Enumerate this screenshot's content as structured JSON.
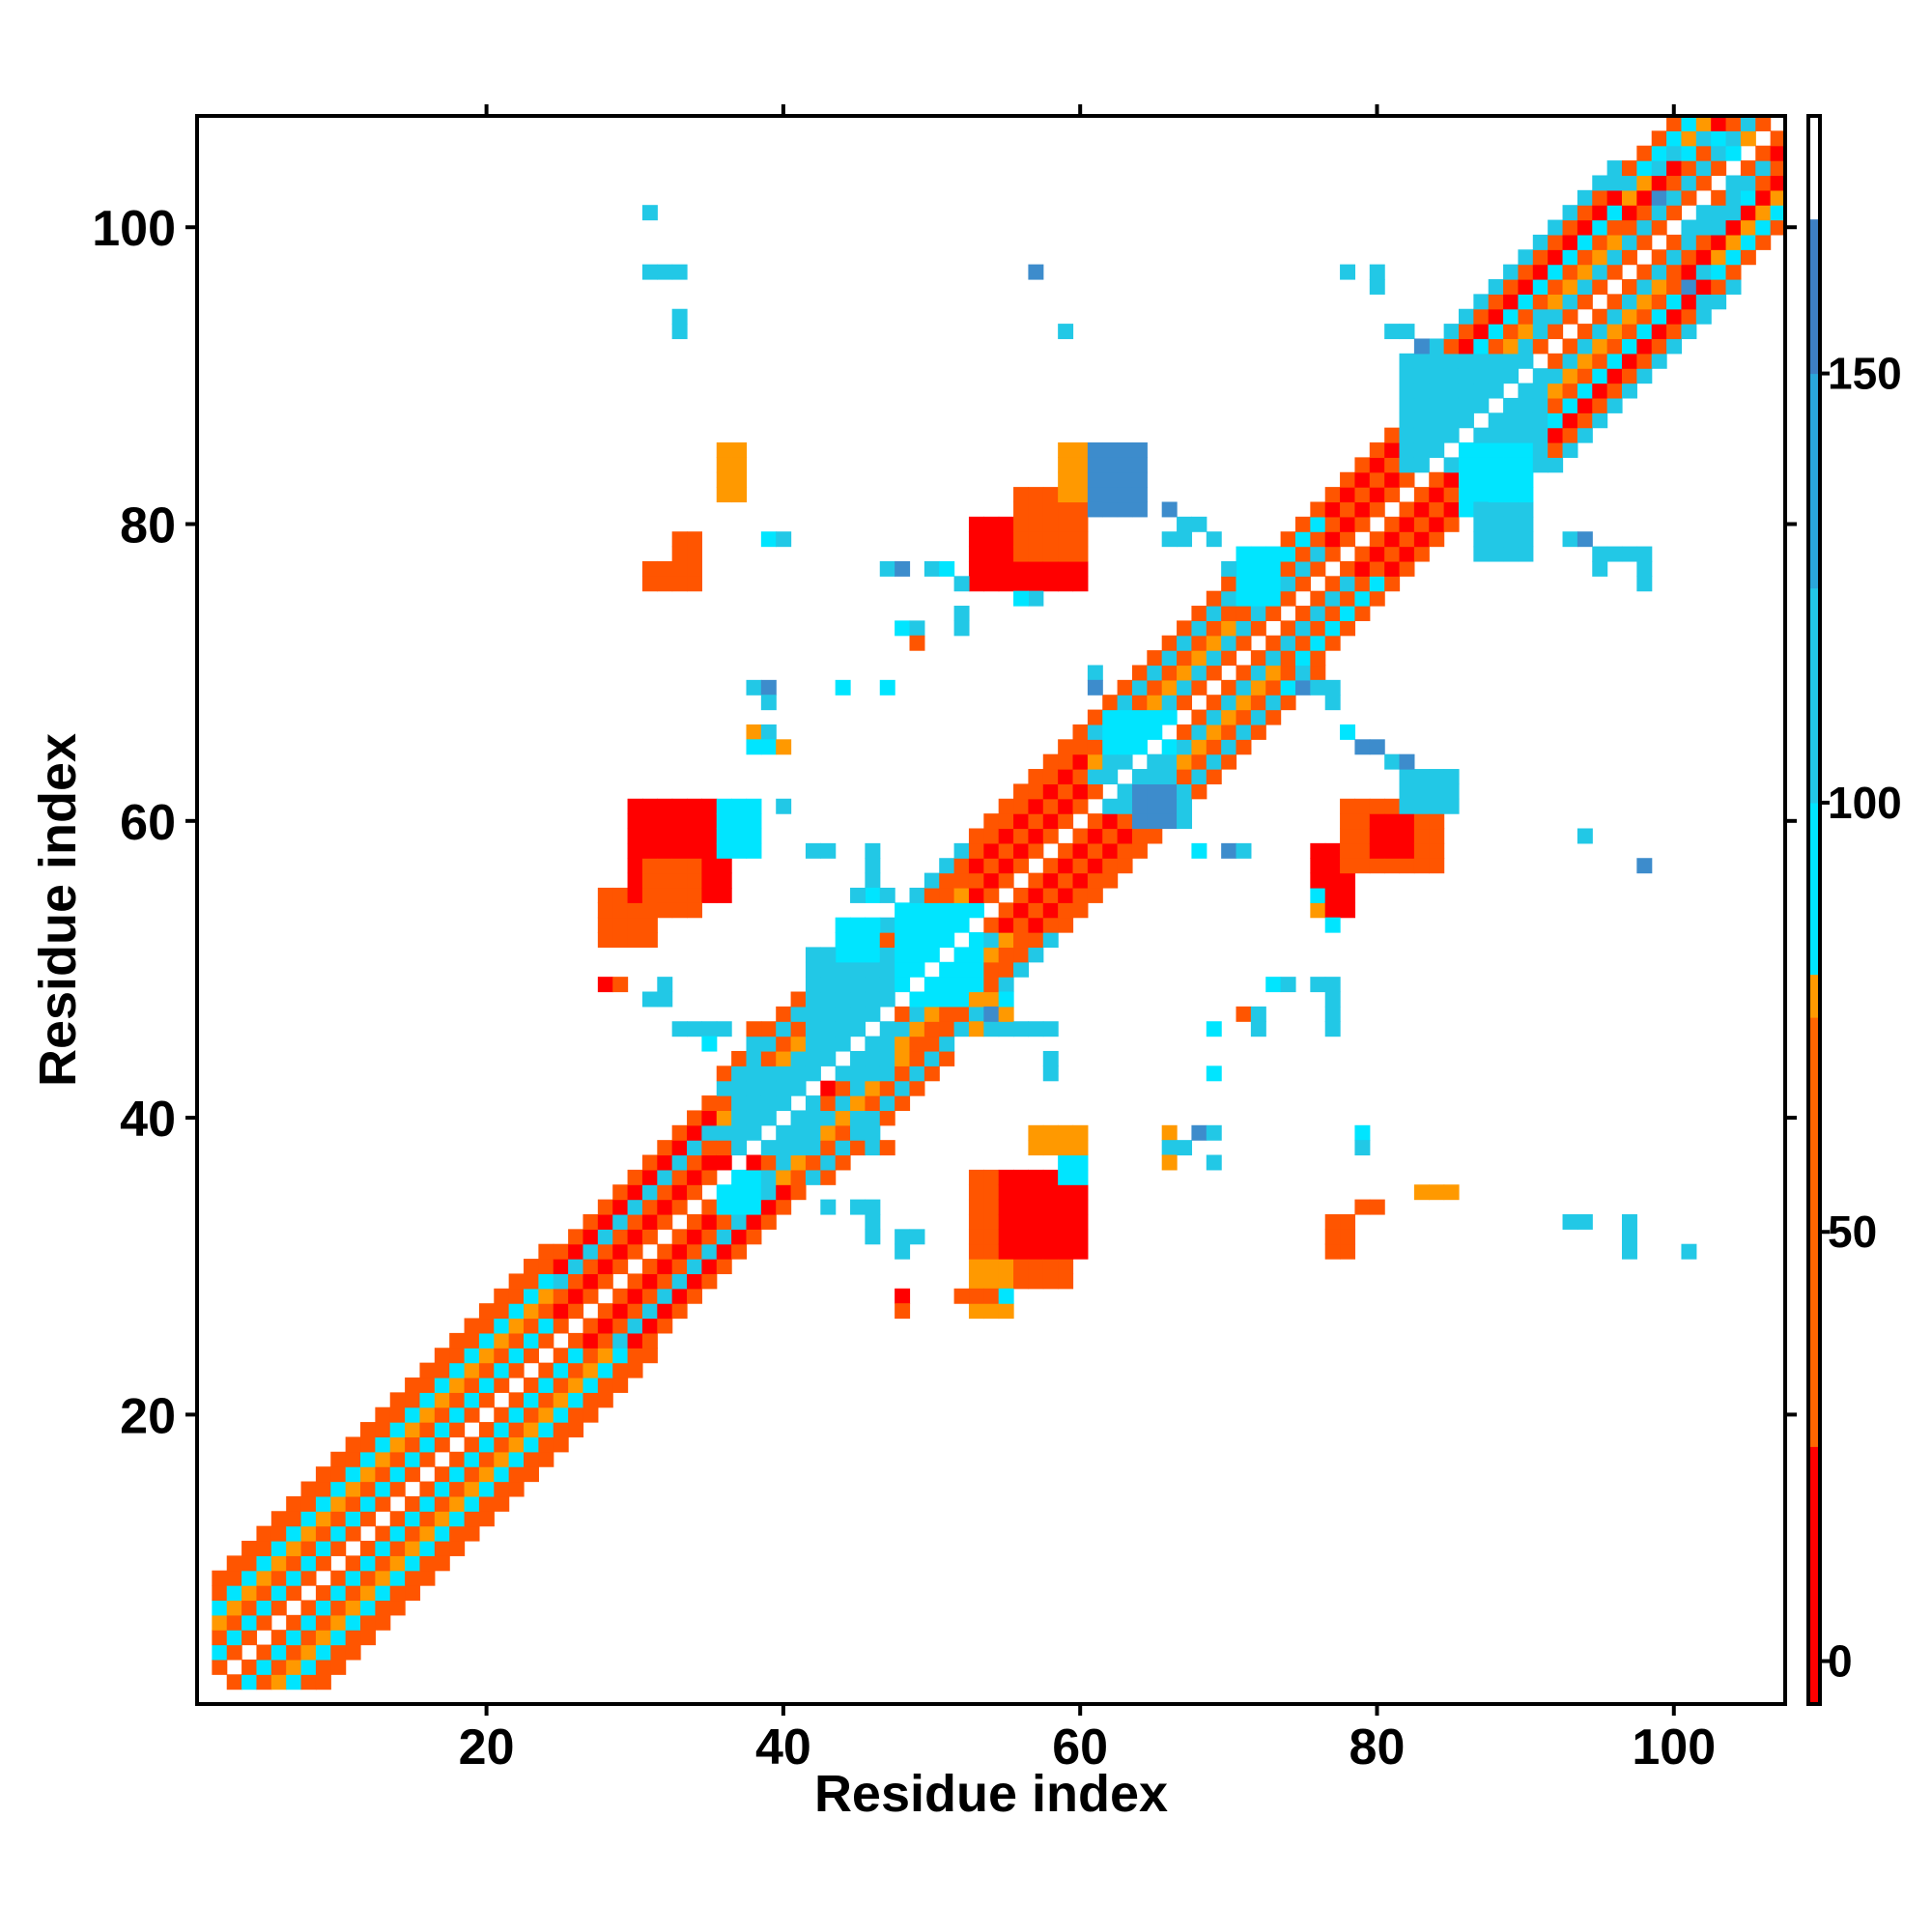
{
  "chart_data": {
    "type": "heatmap",
    "title": "",
    "xlabel": "Residue index",
    "ylabel": "Residue index",
    "xlim": [
      1,
      107
    ],
    "ylim": [
      1,
      107
    ],
    "x_ticks": [
      20,
      40,
      60,
      80,
      100
    ],
    "y_ticks": [
      20,
      40,
      60,
      80,
      100
    ],
    "grid": false,
    "colorbar": {
      "range": [
        -5,
        180
      ],
      "ticks": [
        0,
        50,
        100,
        150
      ],
      "bands": [
        {
          "from": -5,
          "to": 25,
          "color": "#ff0000"
        },
        {
          "from": 25,
          "to": 75,
          "color": "#ff6600"
        },
        {
          "from": 75,
          "to": 80,
          "color": "#ff9900"
        },
        {
          "from": 80,
          "to": 100,
          "color": "#00e5ff"
        },
        {
          "from": 100,
          "to": 125,
          "color": "#22c8e6"
        },
        {
          "from": 125,
          "to": 150,
          "color": "#2aa7db"
        },
        {
          "from": 150,
          "to": 168,
          "color": "#3d7fc4"
        },
        {
          "from": 168,
          "to": 180,
          "color": "#ffffff"
        }
      ]
    },
    "palette": {
      "0": "#ff0000",
      "1": "#ff5500",
      "2": "#ff9900",
      "3": "#00e5ff",
      "4": "#22c8e6",
      "5": "#3d8ccc"
    },
    "diagonal": [
      {
        "from": 2,
        "to": 24,
        "pattern": [
          1,
          3,
          1,
          2,
          3,
          1,
          1
        ]
      },
      {
        "from": 25,
        "to": 35,
        "pattern": [
          1,
          0,
          1,
          4,
          0,
          1
        ]
      },
      {
        "from": 36,
        "to": 44,
        "pattern": [
          0,
          1,
          4,
          2,
          1,
          4,
          1
        ]
      },
      {
        "from": 45,
        "to": 52,
        "pattern": [
          1,
          4,
          2,
          1,
          1,
          4
        ]
      },
      {
        "from": 53,
        "to": 60,
        "pattern": [
          1,
          0,
          1,
          0,
          1,
          1
        ]
      },
      {
        "from": 61,
        "to": 70,
        "pattern": [
          1,
          4,
          2,
          1,
          4,
          1
        ]
      },
      {
        "from": 71,
        "to": 76,
        "pattern": [
          1,
          4,
          1,
          3,
          1
        ]
      },
      {
        "from": 77,
        "to": 83,
        "pattern": [
          1,
          0,
          1,
          0,
          1
        ]
      },
      {
        "from": 84,
        "to": 96,
        "pattern": [
          1,
          4,
          2,
          1,
          3,
          0,
          1,
          4
        ]
      },
      {
        "from": 97,
        "to": 106,
        "pattern": [
          1,
          4,
          1,
          0,
          2,
          3,
          1
        ]
      }
    ],
    "blocks": [
      {
        "x": [
          53,
          59
        ],
        "y": [
          29,
          36
        ],
        "c": 1
      },
      {
        "x": [
          55,
          60
        ],
        "y": [
          31,
          36
        ],
        "c": 0
      },
      {
        "x": [
          53,
          55
        ],
        "y": [
          27,
          30
        ],
        "c": 2
      },
      {
        "x": [
          77,
          78
        ],
        "y": [
          31,
          33
        ],
        "c": 1
      },
      {
        "x": [
          83,
          85
        ],
        "y": [
          35,
          35
        ],
        "c": 2
      },
      {
        "x": [
          28,
          31
        ],
        "y": [
          52,
          55
        ],
        "c": 1
      },
      {
        "x": [
          30,
          36
        ],
        "y": [
          55,
          61
        ],
        "c": 0
      },
      {
        "x": [
          31,
          34
        ],
        "y": [
          54,
          57
        ],
        "c": 1
      },
      {
        "x": [
          36,
          38
        ],
        "y": [
          58,
          61
        ],
        "c": 3
      },
      {
        "x": [
          76,
          78
        ],
        "y": [
          54,
          58
        ],
        "c": 0
      },
      {
        "x": [
          78,
          84
        ],
        "y": [
          57,
          61
        ],
        "c": 1
      },
      {
        "x": [
          80,
          82
        ],
        "y": [
          58,
          60
        ],
        "c": 0
      },
      {
        "x": [
          82,
          85
        ],
        "y": [
          61,
          63
        ],
        "c": 4
      },
      {
        "x": [
          53,
          60
        ],
        "y": [
          76,
          80
        ],
        "c": 0
      },
      {
        "x": [
          56,
          60
        ],
        "y": [
          78,
          82
        ],
        "c": 1
      },
      {
        "x": [
          59,
          61
        ],
        "y": [
          82,
          85
        ],
        "c": 2
      },
      {
        "x": [
          61,
          64
        ],
        "y": [
          81,
          85
        ],
        "c": 5
      },
      {
        "x": [
          31,
          34
        ],
        "y": [
          76,
          77
        ],
        "c": 1
      },
      {
        "x": [
          33,
          34
        ],
        "y": [
          78,
          79
        ],
        "c": 1
      },
      {
        "x": [
          36,
          37
        ],
        "y": [
          82,
          85
        ],
        "c": 2
      },
      {
        "x": [
          82,
          91
        ],
        "y": [
          84,
          91
        ],
        "c": 4
      },
      {
        "x": [
          86,
          90
        ],
        "y": [
          81,
          85
        ],
        "c": 3
      },
      {
        "x": [
          42,
          47
        ],
        "y": [
          43,
          51
        ],
        "c": 4
      },
      {
        "x": [
          48,
          53
        ],
        "y": [
          48,
          54
        ],
        "c": 3
      },
      {
        "x": [
          37,
          42
        ],
        "y": [
          38,
          43
        ],
        "c": 4
      },
      {
        "x": [
          44,
          46
        ],
        "y": [
          51,
          53
        ],
        "c": 3
      },
      {
        "x": [
          62,
          66
        ],
        "y": [
          61,
          66
        ],
        "c": 4
      },
      {
        "x": [
          71,
          73
        ],
        "y": [
          75,
          78
        ],
        "c": 3
      },
      {
        "x": [
          36,
          38
        ],
        "y": [
          34,
          36
        ],
        "c": 3
      },
      {
        "x": [
          59,
          60
        ],
        "y": [
          36,
          38
        ],
        "c": 3
      },
      {
        "x": [
          57,
          60
        ],
        "y": [
          38,
          39
        ],
        "c": 2
      },
      {
        "x": [
          53,
          55
        ],
        "y": [
          46,
          48
        ],
        "c": 2
      },
      {
        "x": [
          62,
          66
        ],
        "y": [
          65,
          67
        ],
        "c": 3
      },
      {
        "x": [
          64,
          66
        ],
        "y": [
          60,
          62
        ],
        "c": 5
      },
      {
        "x": [
          87,
          90
        ],
        "y": [
          78,
          81
        ],
        "c": 4
      }
    ],
    "cells": [
      [
        31,
        101,
        4
      ],
      [
        31,
        97,
        4
      ],
      [
        32,
        97,
        4
      ],
      [
        33,
        97,
        4
      ],
      [
        33,
        94,
        4
      ],
      [
        33,
        93,
        4
      ],
      [
        57,
        97,
        5
      ],
      [
        59,
        93,
        4
      ],
      [
        78,
        97,
        4
      ],
      [
        80,
        97,
        4
      ],
      [
        80,
        96,
        4
      ],
      [
        81,
        93,
        4
      ],
      [
        82,
        93,
        4
      ],
      [
        83,
        92,
        5
      ],
      [
        39,
        79,
        3
      ],
      [
        40,
        79,
        4
      ],
      [
        47,
        77,
        4
      ],
      [
        48,
        77,
        5
      ],
      [
        50,
        77,
        4
      ],
      [
        51,
        77,
        3
      ],
      [
        52,
        76,
        4
      ],
      [
        48,
        73,
        3
      ],
      [
        49,
        73,
        4
      ],
      [
        49,
        72,
        1
      ],
      [
        52,
        74,
        4
      ],
      [
        52,
        73,
        4
      ],
      [
        57,
        75,
        4
      ],
      [
        56,
        75,
        3
      ],
      [
        66,
        81,
        5
      ],
      [
        67,
        80,
        4
      ],
      [
        67,
        79,
        4
      ],
      [
        68,
        80,
        4
      ],
      [
        69,
        79,
        4
      ],
      [
        70,
        77,
        4
      ],
      [
        71,
        76,
        3
      ],
      [
        66,
        79,
        4
      ],
      [
        38,
        69,
        4
      ],
      [
        39,
        69,
        5
      ],
      [
        39,
        68,
        4
      ],
      [
        44,
        69,
        3
      ],
      [
        47,
        69,
        3
      ],
      [
        61,
        70,
        4
      ],
      [
        61,
        69,
        5
      ],
      [
        38,
        66,
        2
      ],
      [
        39,
        66,
        4
      ],
      [
        38,
        65,
        3
      ],
      [
        39,
        65,
        3
      ],
      [
        40,
        65,
        2
      ],
      [
        40,
        61,
        4
      ],
      [
        42,
        58,
        4
      ],
      [
        43,
        58,
        4
      ],
      [
        46,
        58,
        4
      ],
      [
        46,
        57,
        4
      ],
      [
        46,
        56,
        4
      ],
      [
        46,
        55,
        3
      ],
      [
        45,
        55,
        4
      ],
      [
        47,
        55,
        4
      ],
      [
        67,
        61,
        4
      ],
      [
        67,
        60,
        4
      ],
      [
        68,
        58,
        3
      ],
      [
        70,
        58,
        5
      ],
      [
        71,
        58,
        4
      ],
      [
        94,
        59,
        4
      ],
      [
        98,
        57,
        5
      ],
      [
        74,
        69,
        3
      ],
      [
        75,
        69,
        5
      ],
      [
        76,
        69,
        4
      ],
      [
        77,
        69,
        4
      ],
      [
        77,
        68,
        4
      ],
      [
        78,
        66,
        3
      ],
      [
        79,
        65,
        5
      ],
      [
        80,
        65,
        5
      ],
      [
        76,
        55,
        3
      ],
      [
        76,
        54,
        2
      ],
      [
        77,
        53,
        3
      ],
      [
        81,
        64,
        4
      ],
      [
        82,
        64,
        5
      ],
      [
        28,
        49,
        0
      ],
      [
        29,
        49,
        1
      ],
      [
        31,
        48,
        4
      ],
      [
        32,
        49,
        4
      ],
      [
        32,
        48,
        4
      ],
      [
        33,
        46,
        4
      ],
      [
        34,
        46,
        4
      ],
      [
        35,
        46,
        4
      ],
      [
        35,
        45,
        3
      ],
      [
        36,
        46,
        4
      ],
      [
        38,
        46,
        1
      ],
      [
        38,
        45,
        4
      ],
      [
        53,
        47,
        4
      ],
      [
        54,
        47,
        5
      ],
      [
        54,
        46,
        4
      ],
      [
        55,
        46,
        4
      ],
      [
        56,
        46,
        4
      ],
      [
        57,
        46,
        4
      ],
      [
        58,
        46,
        4
      ],
      [
        55,
        48,
        3
      ],
      [
        58,
        44,
        4
      ],
      [
        58,
        43,
        4
      ],
      [
        45,
        40,
        4
      ],
      [
        46,
        39,
        4
      ],
      [
        46,
        38,
        4
      ],
      [
        47,
        38,
        1
      ],
      [
        42,
        36,
        4
      ],
      [
        43,
        34,
        4
      ],
      [
        45,
        34,
        4
      ],
      [
        46,
        34,
        4
      ],
      [
        46,
        33,
        4
      ],
      [
        46,
        32,
        4
      ],
      [
        48,
        32,
        4
      ],
      [
        49,
        32,
        4
      ],
      [
        48,
        31,
        4
      ],
      [
        48,
        28,
        0
      ],
      [
        48,
        27,
        1
      ],
      [
        52,
        28,
        1
      ],
      [
        53,
        28,
        1
      ],
      [
        54,
        28,
        1
      ],
      [
        55,
        28,
        3
      ],
      [
        69,
        46,
        3
      ],
      [
        69,
        43,
        3
      ],
      [
        71,
        47,
        1
      ],
      [
        72,
        47,
        4
      ],
      [
        72,
        46,
        4
      ],
      [
        73,
        49,
        3
      ],
      [
        74,
        49,
        4
      ],
      [
        76,
        49,
        4
      ],
      [
        77,
        49,
        4
      ],
      [
        77,
        48,
        4
      ],
      [
        77,
        47,
        4
      ],
      [
        77,
        46,
        4
      ],
      [
        66,
        39,
        2
      ],
      [
        66,
        38,
        4
      ],
      [
        66,
        37,
        2
      ],
      [
        67,
        38,
        4
      ],
      [
        68,
        39,
        5
      ],
      [
        69,
        39,
        4
      ],
      [
        69,
        37,
        4
      ],
      [
        79,
        39,
        3
      ],
      [
        79,
        38,
        4
      ],
      [
        79,
        34,
        1
      ],
      [
        80,
        34,
        1
      ],
      [
        93,
        33,
        4
      ],
      [
        94,
        33,
        4
      ],
      [
        97,
        33,
        4
      ],
      [
        97,
        32,
        4
      ],
      [
        97,
        31,
        4
      ],
      [
        101,
        31,
        4
      ],
      [
        93,
        79,
        4
      ],
      [
        94,
        79,
        5
      ],
      [
        95,
        78,
        4
      ],
      [
        95,
        77,
        4
      ],
      [
        96,
        78,
        4
      ],
      [
        97,
        78,
        4
      ],
      [
        98,
        78,
        4
      ],
      [
        98,
        77,
        4
      ],
      [
        98,
        76,
        4
      ],
      [
        91,
        94,
        4
      ],
      [
        92,
        92,
        4
      ],
      [
        99,
        102,
        5
      ],
      [
        101,
        100,
        4
      ],
      [
        102,
        101,
        4
      ],
      [
        103,
        100,
        4
      ],
      [
        104,
        101,
        4
      ],
      [
        102,
        97,
        4
      ],
      [
        101,
        96,
        5
      ],
      [
        102,
        95,
        4
      ],
      [
        96,
        103,
        4
      ],
      [
        97,
        103,
        4
      ],
      [
        104,
        103,
        4
      ],
      [
        105,
        102,
        3
      ],
      [
        103,
        106,
        3
      ],
      [
        104,
        105,
        3
      ],
      [
        105,
        106,
        2
      ],
      [
        106,
        106,
        0
      ],
      [
        107,
        105,
        0
      ],
      [
        98,
        104,
        3
      ],
      [
        99,
        104,
        4
      ],
      [
        100,
        105,
        4
      ],
      [
        101,
        105,
        3
      ],
      [
        102,
        106,
        4
      ]
    ]
  }
}
